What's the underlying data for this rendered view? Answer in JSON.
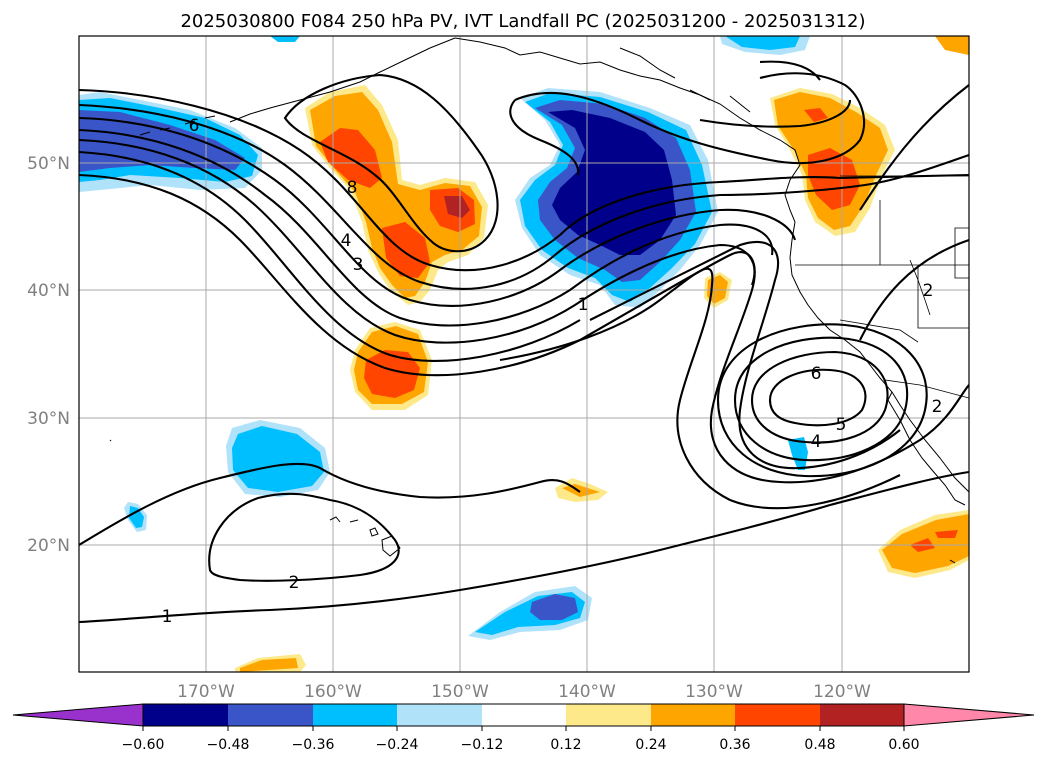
{
  "title": "2025030800 F084 250 hPa PV, IVT Landfall PC (2025031200 - 2025031312)",
  "map": {
    "lon_labels": [
      "170°W",
      "160°W",
      "150°W",
      "140°W",
      "130°W",
      "120°W"
    ],
    "lat_labels": [
      "50°N",
      "40°N",
      "30°N",
      "20°N"
    ],
    "contour_labels": [
      "6",
      "8",
      "4",
      "3",
      "1",
      "6",
      "5",
      "4",
      "2",
      "2",
      "1",
      "2"
    ]
  },
  "colorbar": {
    "ticks": [
      "−0.60",
      "−0.48",
      "−0.36",
      "−0.24",
      "−0.12",
      "0.12",
      "0.24",
      "0.36",
      "0.48",
      "0.60"
    ],
    "colors": [
      "#9932cc",
      "#00008b",
      "#3a55c8",
      "#00bfff",
      "#b0e2fa",
      "#ffffff",
      "#fde98a",
      "#ffa500",
      "#ff4500",
      "#b22222",
      "#ff88aa"
    ]
  },
  "colors": {
    "dark_blue": "#00008b",
    "mid_blue": "#3a55c8",
    "sky_blue": "#00bfff",
    "light_blue": "#b0e2fa",
    "light_yellow": "#fde98a",
    "orange": "#ffa500",
    "red_orange": "#ff4500",
    "dark_red": "#b22222"
  }
}
